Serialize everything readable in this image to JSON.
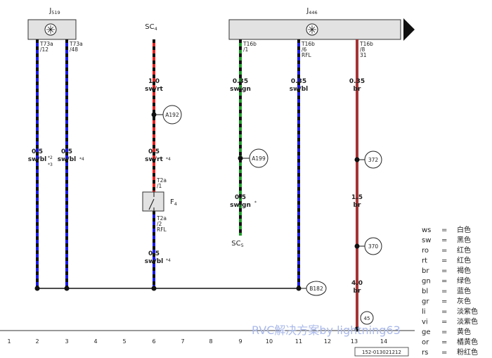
{
  "headers": {
    "j519": {
      "name": "J",
      "sub": "519"
    },
    "sc4": {
      "name": "SC",
      "sub": "4"
    },
    "j446": {
      "name": "J",
      "sub": "446"
    }
  },
  "wires": [
    {
      "pin": [
        "T73a",
        "/12"
      ],
      "sections": [
        {
          "size": "0.5",
          "color": "sw/bl",
          "notes": [
            "*2",
            "*3"
          ]
        }
      ]
    },
    {
      "pin": [
        "T73a",
        "/48"
      ],
      "sections": [
        {
          "size": "0.5",
          "color": "sw/bl",
          "notes": [
            "*4"
          ]
        }
      ]
    },
    {
      "sections": [
        {
          "size": "1.0",
          "color": "sw/rt"
        },
        {
          "size": "0.5",
          "color": "sw/rt",
          "notes": [
            "*4"
          ]
        },
        {
          "size": "0.5",
          "color": "sw/bl",
          "notes": [
            "*4"
          ]
        }
      ],
      "nodes": [
        "A192"
      ],
      "fuse": {
        "name": "F",
        "sub": "4",
        "pin_in": [
          "T2a",
          "/1"
        ],
        "pin_out": [
          "T2a",
          "/2",
          "RFL"
        ]
      }
    },
    {
      "pin": [
        "T16b",
        "/1"
      ],
      "sections": [
        {
          "size": "0.35",
          "color": "sw/gn"
        },
        {
          "size": "0.5",
          "color": "sw/gn",
          "notes": [
            "*"
          ]
        }
      ],
      "nodes": [
        "A199"
      ],
      "end": {
        "name": "SC",
        "sub": "5"
      }
    },
    {
      "pin": [
        "T16b",
        "/6",
        "RFL"
      ],
      "sections": [
        {
          "size": "0.35",
          "color": "sw/bl"
        }
      ],
      "nodes": [
        "B182"
      ]
    },
    {
      "pin": [
        "T16b",
        "/8",
        "31"
      ],
      "sections": [
        {
          "size": "0.35",
          "color": "br"
        },
        {
          "size": "1.5",
          "color": "br"
        },
        {
          "size": "4.0",
          "color": "br"
        }
      ],
      "nodes": [
        "372",
        "370",
        "45"
      ]
    }
  ],
  "columns": [
    "1",
    "2",
    "3",
    "4",
    "5",
    "6",
    "7",
    "8",
    "9",
    "10",
    "11",
    "12",
    "13",
    "14"
  ],
  "code": "152-013021212",
  "legend": [
    [
      "ws",
      "=",
      "白色"
    ],
    [
      "sw",
      "=",
      "黑色"
    ],
    [
      "ro",
      "=",
      "红色"
    ],
    [
      "rt",
      "=",
      "红色"
    ],
    [
      "br",
      "=",
      "褐色"
    ],
    [
      "gn",
      "=",
      "绿色"
    ],
    [
      "bl",
      "=",
      "蓝色"
    ],
    [
      "gr",
      "=",
      "灰色"
    ],
    [
      "li",
      "=",
      "淡紫色"
    ],
    [
      "vi",
      "=",
      "淡紫色"
    ],
    [
      "ge",
      "=",
      "黄色"
    ],
    [
      "or",
      "=",
      "橘黄色"
    ],
    [
      "rs",
      "=",
      "粉红色"
    ]
  ],
  "watermark": "RVC解决方案by lightning63"
}
